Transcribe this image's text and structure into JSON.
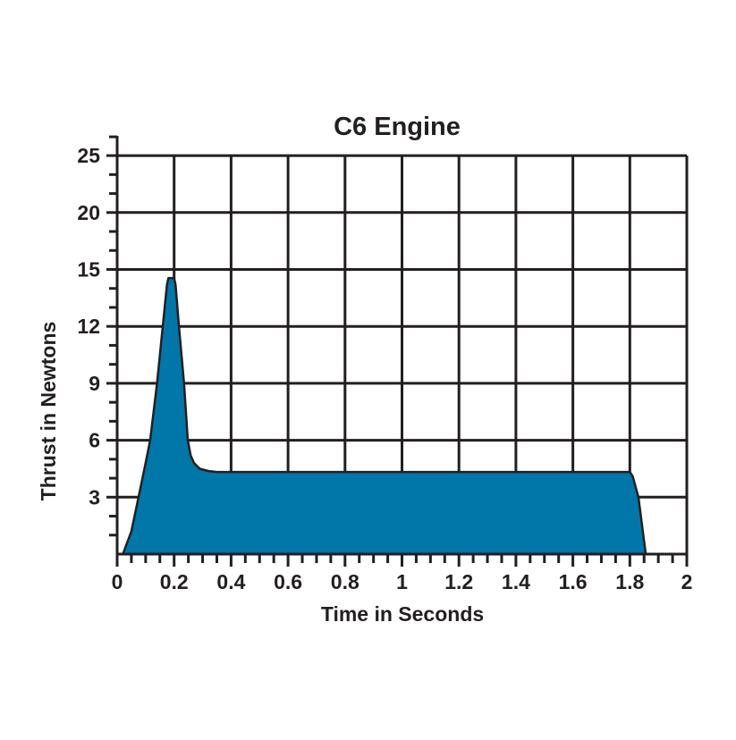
{
  "chart_data": {
    "type": "area",
    "title": "C6 Engine",
    "xlabel": "Time in Seconds",
    "ylabel": "Thrust in Newtons",
    "xlim": [
      0,
      2
    ],
    "x_ticks": [
      0,
      0.2,
      0.4,
      0.6,
      0.8,
      1,
      1.2,
      1.4,
      1.6,
      1.8,
      2
    ],
    "x_tick_labels": [
      "0",
      "0.2",
      "0.4",
      "0.6",
      "0.8",
      "1",
      "1.2",
      "1.4",
      "1.6",
      "1.8",
      "2"
    ],
    "y_ticks": [
      0,
      3,
      6,
      9,
      12,
      15,
      20,
      25
    ],
    "y_tick_labels": [
      "3",
      "6",
      "9",
      "12",
      "15",
      "20",
      "25"
    ],
    "grid": true,
    "fill_color": "#0077a8",
    "series": [
      {
        "x": [
          0.02,
          0.05,
          0.075,
          0.1,
          0.116,
          0.14,
          0.16,
          0.175,
          0.18,
          0.2,
          0.205,
          0.217,
          0.235,
          0.248,
          0.258,
          0.27,
          0.29,
          0.32,
          0.35,
          1.8,
          1.81,
          1.83,
          1.856
        ],
        "y": [
          0,
          1.2,
          3,
          4.8,
          6,
          9,
          12,
          14.2,
          14.55,
          14.55,
          14.2,
          12,
          9,
          6,
          5.2,
          4.8,
          4.5,
          4.38,
          4.33,
          4.33,
          4.1,
          3,
          0
        ]
      }
    ]
  }
}
